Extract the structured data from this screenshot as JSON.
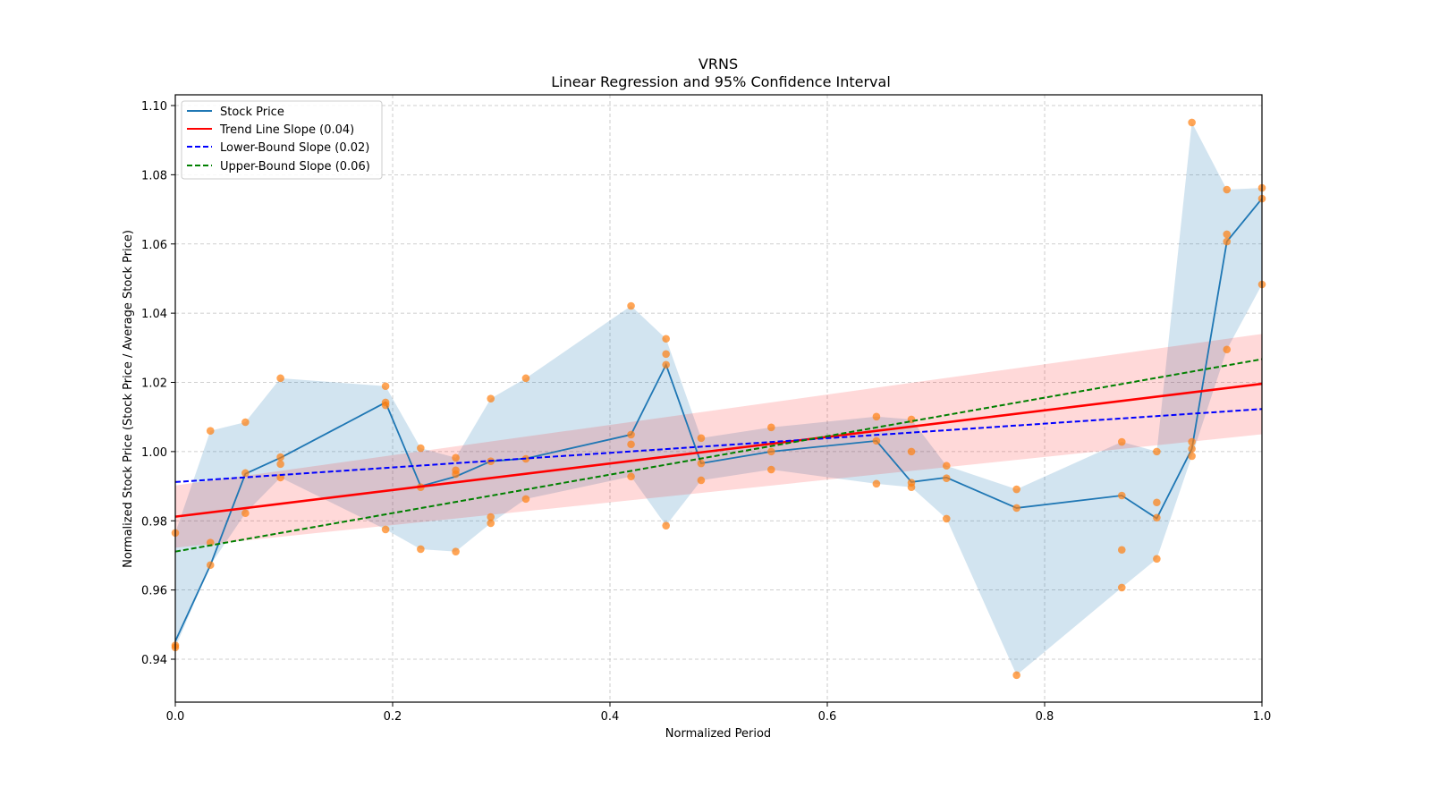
{
  "chart_data": {
    "type": "line",
    "title": "VRNS",
    "subtitle": "Linear Regression and 95% Confidence Interval",
    "xlabel": "Normalized Period",
    "ylabel": "Normalized Stock Price (Stock Price / Average Stock Price)",
    "xlim": [
      0.0,
      1.0
    ],
    "ylim": [
      0.928,
      1.103
    ],
    "xticks": [
      0.0,
      0.2,
      0.4,
      0.6,
      0.8,
      1.0
    ],
    "xtick_labels": [
      "0.0",
      "0.2",
      "0.4",
      "0.6",
      "0.8",
      "1.0"
    ],
    "yticks": [
      0.94,
      0.96,
      0.98,
      1.0,
      1.02,
      1.04,
      1.06,
      1.08,
      1.1
    ],
    "ytick_labels": [
      "0.94",
      "0.96",
      "0.98",
      "1.00",
      "1.02",
      "1.04",
      "1.06",
      "1.08",
      "1.10"
    ],
    "grid": true,
    "legend_position": "top-left",
    "legend": [
      {
        "label": "Stock Price",
        "color": "#1f77b4",
        "style": "solid"
      },
      {
        "label": "Trend Line Slope (0.04)",
        "color": "#ff0000",
        "style": "solid"
      },
      {
        "label": "Lower-Bound Slope (0.02)",
        "color": "#0000ff",
        "style": "dashed"
      },
      {
        "label": "Upper-Bound Slope (0.06)",
        "color": "#008000",
        "style": "dashed"
      }
    ],
    "colors": {
      "stock": "#1f77b4",
      "band": "#1f77b4",
      "scatter": "#ff7f0e",
      "trend": "#ff0000",
      "ci": "#ff9999",
      "lower": "#0000ff",
      "upper": "#008000"
    },
    "periods": [
      {
        "x": 0.0,
        "mean": 0.9452,
        "points": [
          0.9765,
          0.944,
          0.9434
        ]
      },
      {
        "x": 0.0323,
        "mean": 0.9672,
        "points": [
          1.006,
          0.9737,
          0.9672
        ]
      },
      {
        "x": 0.0645,
        "mean": 0.9936,
        "points": [
          1.0085,
          0.9938,
          0.9822
        ]
      },
      {
        "x": 0.0968,
        "mean": 0.9982,
        "points": [
          1.0212,
          0.9984,
          0.9964,
          0.9925
        ]
      },
      {
        "x": 0.1935,
        "mean": 1.0142,
        "points": [
          1.0189,
          1.0142,
          1.0134,
          0.9775
        ]
      },
      {
        "x": 0.2258,
        "mean": 0.99,
        "points": [
          1.001,
          0.9897,
          0.9718
        ]
      },
      {
        "x": 0.2581,
        "mean": 0.9928,
        "points": [
          0.9982,
          0.9946,
          0.9935,
          0.9711
        ]
      },
      {
        "x": 0.2903,
        "mean": 0.9972,
        "points": [
          1.0153,
          0.9972,
          0.9811,
          0.9793
        ]
      },
      {
        "x": 0.3226,
        "mean": 0.998,
        "points": [
          1.0212,
          0.9979,
          0.9863
        ]
      },
      {
        "x": 0.4194,
        "mean": 1.0049,
        "points": [
          1.0421,
          1.0049,
          1.0021,
          0.9928
        ]
      },
      {
        "x": 0.4516,
        "mean": 1.0251,
        "points": [
          1.0326,
          1.0282,
          1.0251,
          0.9786
        ]
      },
      {
        "x": 0.4839,
        "mean": 0.9966,
        "points": [
          1.0039,
          0.9966,
          0.9917
        ]
      },
      {
        "x": 0.5484,
        "mean": 1.0,
        "points": [
          1.007,
          1.0,
          0.9948
        ]
      },
      {
        "x": 0.6452,
        "mean": 1.0031,
        "points": [
          1.0101,
          1.0031,
          0.9907
        ]
      },
      {
        "x": 0.6774,
        "mean": 0.9912,
        "points": [
          1.0093,
          1.0,
          0.991,
          0.9897
        ]
      },
      {
        "x": 0.7097,
        "mean": 0.9925,
        "points": [
          0.9959,
          0.9923,
          0.9806
        ]
      },
      {
        "x": 0.7742,
        "mean": 0.9837,
        "points": [
          0.9891,
          0.9837,
          0.9354
        ]
      },
      {
        "x": 0.871,
        "mean": 0.9873,
        "points": [
          1.0028,
          0.9873,
          0.9716,
          0.9607
        ]
      },
      {
        "x": 0.9032,
        "mean": 0.9807,
        "points": [
          1.0,
          0.9853,
          0.9809,
          0.969
        ]
      },
      {
        "x": 0.9355,
        "mean": 1.0008,
        "points": [
          1.0951,
          1.0028,
          1.0008,
          0.9987
        ]
      },
      {
        "x": 0.9677,
        "mean": 1.0607,
        "points": [
          1.0757,
          1.0628,
          1.0607,
          1.0295
        ]
      },
      {
        "x": 1.0,
        "mean": 1.0731,
        "points": [
          1.0762,
          1.0731,
          1.0483
        ]
      }
    ],
    "trend_line": {
      "x": [
        0.0,
        1.0
      ],
      "y": [
        0.9812,
        1.0196
      ]
    },
    "lower_bound_line": {
      "x": [
        0.0,
        1.0
      ],
      "y": [
        0.9912,
        1.0123
      ]
    },
    "upper_bound_line": {
      "x": [
        0.0,
        1.0
      ],
      "y": [
        0.9711,
        1.0267
      ]
    },
    "confidence_band": {
      "x": [
        0.0,
        1.0
      ],
      "lower": [
        0.9722,
        1.005
      ],
      "upper": [
        0.9902,
        1.034
      ]
    }
  }
}
